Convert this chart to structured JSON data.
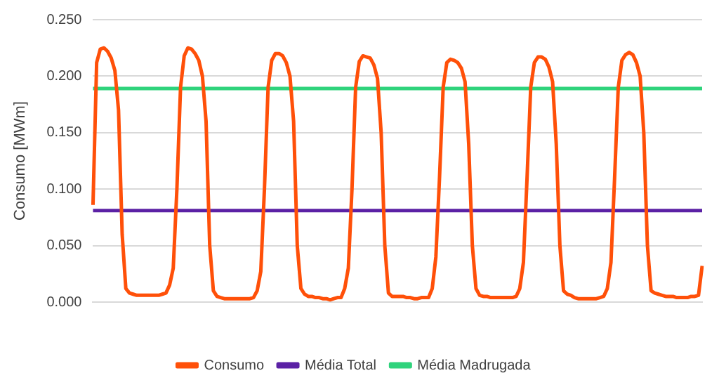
{
  "chart_data": {
    "type": "line",
    "ylabel": "Consumo [MWm]",
    "categories": [
      null,
      null,
      null,
      null,
      null,
      null,
      null,
      null,
      null,
      null,
      null,
      null,
      null,
      null,
      null,
      null,
      null,
      null,
      null,
      null,
      null,
      null,
      null,
      null,
      null,
      null,
      null,
      null,
      null,
      null,
      null,
      null,
      null,
      null,
      null,
      null,
      null,
      null,
      null,
      null,
      null,
      null,
      null,
      null,
      null,
      null,
      null,
      null,
      null,
      null,
      null,
      null,
      null,
      null,
      null,
      null,
      null,
      null,
      null,
      null,
      null,
      null,
      null,
      null,
      null,
      null,
      null,
      null,
      null,
      null,
      null,
      null,
      null,
      null,
      null,
      null,
      null,
      null,
      null,
      null,
      null,
      null,
      null,
      null,
      null,
      null,
      null,
      null,
      null,
      null,
      null,
      null,
      null,
      null,
      null,
      null,
      null,
      null,
      null,
      null,
      null,
      null,
      null,
      null,
      null,
      null,
      null,
      null,
      null,
      null,
      null,
      null,
      null,
      null,
      null,
      null,
      null,
      null,
      null,
      null,
      null,
      null,
      null,
      null,
      null,
      null,
      null,
      null,
      null,
      null,
      null,
      null,
      null,
      null,
      null,
      null,
      null,
      null,
      null,
      null,
      null,
      null,
      null,
      null,
      null,
      null,
      null,
      null,
      null,
      null,
      null,
      null,
      null,
      null,
      null,
      null,
      null,
      null,
      null,
      null,
      null,
      null,
      null,
      null,
      null,
      null,
      null,
      null
    ],
    "series": [
      {
        "name": "Consumo",
        "color": "#ff5009",
        "values": [
          0.086,
          0.212,
          0.224,
          0.225,
          0.222,
          0.216,
          0.205,
          0.17,
          0.06,
          0.012,
          0.008,
          0.007,
          0.006,
          0.006,
          0.006,
          0.006,
          0.006,
          0.006,
          0.006,
          0.007,
          0.008,
          0.015,
          0.03,
          0.1,
          0.19,
          0.218,
          0.225,
          0.224,
          0.22,
          0.214,
          0.2,
          0.16,
          0.05,
          0.01,
          0.005,
          0.004,
          0.003,
          0.003,
          0.003,
          0.003,
          0.003,
          0.003,
          0.003,
          0.003,
          0.004,
          0.01,
          0.027,
          0.1,
          0.19,
          0.214,
          0.22,
          0.22,
          0.218,
          0.212,
          0.2,
          0.16,
          0.05,
          0.012,
          0.007,
          0.005,
          0.005,
          0.004,
          0.004,
          0.003,
          0.003,
          0.002,
          0.003,
          0.004,
          0.004,
          0.012,
          0.03,
          0.1,
          0.19,
          0.213,
          0.218,
          0.217,
          0.216,
          0.21,
          0.198,
          0.15,
          0.05,
          0.008,
          0.005,
          0.005,
          0.005,
          0.005,
          0.004,
          0.004,
          0.003,
          0.003,
          0.004,
          0.004,
          0.004,
          0.012,
          0.04,
          0.11,
          0.19,
          0.212,
          0.215,
          0.214,
          0.212,
          0.207,
          0.195,
          0.14,
          0.05,
          0.012,
          0.006,
          0.005,
          0.005,
          0.004,
          0.004,
          0.004,
          0.004,
          0.004,
          0.004,
          0.004,
          0.005,
          0.012,
          0.035,
          0.11,
          0.19,
          0.212,
          0.217,
          0.217,
          0.215,
          0.208,
          0.195,
          0.14,
          0.05,
          0.01,
          0.007,
          0.006,
          0.004,
          0.003,
          0.003,
          0.003,
          0.003,
          0.003,
          0.003,
          0.004,
          0.005,
          0.012,
          0.035,
          0.11,
          0.19,
          0.214,
          0.219,
          0.221,
          0.219,
          0.212,
          0.2,
          0.15,
          0.05,
          0.01,
          0.008,
          0.007,
          0.006,
          0.005,
          0.005,
          0.005,
          0.004,
          0.004,
          0.004,
          0.004,
          0.005,
          0.005,
          0.006,
          0.032
        ]
      },
      {
        "name": "Média Total",
        "color": "#5b21a5",
        "values": [
          0.081,
          0.081,
          0.081,
          0.081,
          0.081,
          0.081,
          0.081,
          0.081,
          0.081,
          0.081,
          0.081,
          0.081,
          0.081,
          0.081,
          0.081,
          0.081,
          0.081,
          0.081,
          0.081,
          0.081,
          0.081,
          0.081,
          0.081,
          0.081,
          0.081,
          0.081,
          0.081,
          0.081,
          0.081,
          0.081,
          0.081,
          0.081,
          0.081,
          0.081,
          0.081,
          0.081,
          0.081,
          0.081,
          0.081,
          0.081,
          0.081,
          0.081,
          0.081,
          0.081,
          0.081,
          0.081,
          0.081,
          0.081,
          0.081,
          0.081,
          0.081,
          0.081,
          0.081,
          0.081,
          0.081,
          0.081,
          0.081,
          0.081,
          0.081,
          0.081,
          0.081,
          0.081,
          0.081,
          0.081,
          0.081,
          0.081,
          0.081,
          0.081,
          0.081,
          0.081,
          0.081,
          0.081,
          0.081,
          0.081,
          0.081,
          0.081,
          0.081,
          0.081,
          0.081,
          0.081,
          0.081,
          0.081,
          0.081,
          0.081,
          0.081,
          0.081,
          0.081,
          0.081,
          0.081,
          0.081,
          0.081,
          0.081,
          0.081,
          0.081,
          0.081,
          0.081,
          0.081,
          0.081,
          0.081,
          0.081,
          0.081,
          0.081,
          0.081,
          0.081,
          0.081,
          0.081,
          0.081,
          0.081,
          0.081,
          0.081,
          0.081,
          0.081,
          0.081,
          0.081,
          0.081,
          0.081,
          0.081,
          0.081,
          0.081,
          0.081,
          0.081,
          0.081,
          0.081,
          0.081,
          0.081,
          0.081,
          0.081,
          0.081,
          0.081,
          0.081,
          0.081,
          0.081,
          0.081,
          0.081,
          0.081,
          0.081,
          0.081,
          0.081,
          0.081,
          0.081,
          0.081,
          0.081,
          0.081,
          0.081,
          0.081,
          0.081,
          0.081,
          0.081,
          0.081,
          0.081,
          0.081,
          0.081,
          0.081,
          0.081,
          0.081,
          0.081,
          0.081,
          0.081,
          0.081,
          0.081,
          0.081,
          0.081,
          0.081,
          0.081,
          0.081,
          0.081,
          0.081,
          0.081
        ]
      },
      {
        "name": "Média Madrugada",
        "color": "#2fd37c",
        "values": [
          0.189,
          0.189,
          0.189,
          0.189,
          0.189,
          0.189,
          0.189,
          0.189,
          0.189,
          0.189,
          0.189,
          0.189,
          0.189,
          0.189,
          0.189,
          0.189,
          0.189,
          0.189,
          0.189,
          0.189,
          0.189,
          0.189,
          0.189,
          0.189,
          0.189,
          0.189,
          0.189,
          0.189,
          0.189,
          0.189,
          0.189,
          0.189,
          0.189,
          0.189,
          0.189,
          0.189,
          0.189,
          0.189,
          0.189,
          0.189,
          0.189,
          0.189,
          0.189,
          0.189,
          0.189,
          0.189,
          0.189,
          0.189,
          0.189,
          0.189,
          0.189,
          0.189,
          0.189,
          0.189,
          0.189,
          0.189,
          0.189,
          0.189,
          0.189,
          0.189,
          0.189,
          0.189,
          0.189,
          0.189,
          0.189,
          0.189,
          0.189,
          0.189,
          0.189,
          0.189,
          0.189,
          0.189,
          0.189,
          0.189,
          0.189,
          0.189,
          0.189,
          0.189,
          0.189,
          0.189,
          0.189,
          0.189,
          0.189,
          0.189,
          0.189,
          0.189,
          0.189,
          0.189,
          0.189,
          0.189,
          0.189,
          0.189,
          0.189,
          0.189,
          0.189,
          0.189,
          0.189,
          0.189,
          0.189,
          0.189,
          0.189,
          0.189,
          0.189,
          0.189,
          0.189,
          0.189,
          0.189,
          0.189,
          0.189,
          0.189,
          0.189,
          0.189,
          0.189,
          0.189,
          0.189,
          0.189,
          0.189,
          0.189,
          0.189,
          0.189,
          0.189,
          0.189,
          0.189,
          0.189,
          0.189,
          0.189,
          0.189,
          0.189,
          0.189,
          0.189,
          0.189,
          0.189,
          0.189,
          0.189,
          0.189,
          0.189,
          0.189,
          0.189,
          0.189,
          0.189,
          0.189,
          0.189,
          0.189,
          0.189,
          0.189,
          0.189,
          0.189,
          0.189,
          0.189,
          0.189,
          0.189,
          0.189,
          0.189,
          0.189,
          0.189,
          0.189,
          0.189,
          0.189,
          0.189,
          0.189,
          0.189,
          0.189,
          0.189,
          0.189,
          0.189,
          0.189,
          0.189,
          0.189
        ]
      }
    ],
    "ylim": [
      0,
      0.25
    ],
    "yticks": [
      {
        "value": 0,
        "label": "0.000"
      },
      {
        "value": 0.05,
        "label": "0.050"
      },
      {
        "value": 0.1,
        "label": "0.100"
      },
      {
        "value": 0.15,
        "label": "0.150"
      },
      {
        "value": 0.2,
        "label": "0.200"
      },
      {
        "value": 0.25,
        "label": "0.250"
      }
    ],
    "grid": "y",
    "legend": "bottom",
    "tick_labels": "y",
    "marker": "none",
    "line_style": "solid"
  }
}
